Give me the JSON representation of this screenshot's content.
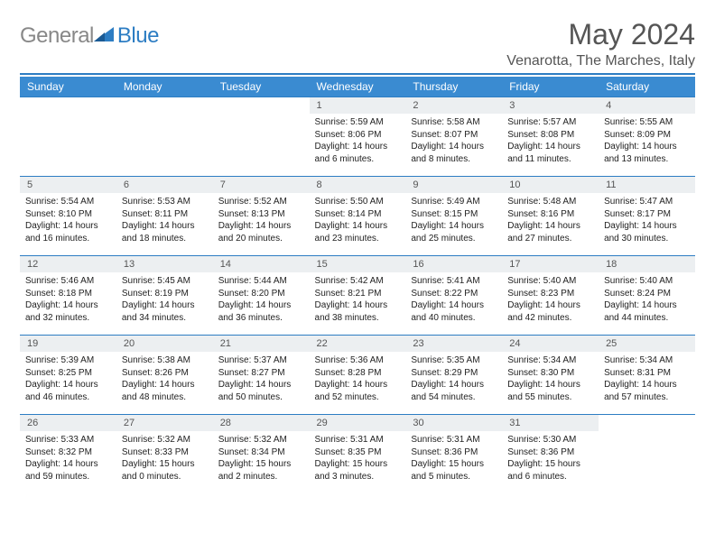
{
  "logo": {
    "textA": "General",
    "textB": "Blue"
  },
  "title": "May 2024",
  "subtitle": "Venarotta, The Marches, Italy",
  "colors": {
    "headerBar": "#3a8bd1",
    "rule": "#2d7dc3",
    "dayNumBg": "#eceff1"
  },
  "weekdays": [
    "Sunday",
    "Monday",
    "Tuesday",
    "Wednesday",
    "Thursday",
    "Friday",
    "Saturday"
  ],
  "weeks": [
    [
      null,
      null,
      null,
      {
        "n": "1",
        "sr": "5:59 AM",
        "ss": "8:06 PM",
        "dl": "14 hours and 6 minutes."
      },
      {
        "n": "2",
        "sr": "5:58 AM",
        "ss": "8:07 PM",
        "dl": "14 hours and 8 minutes."
      },
      {
        "n": "3",
        "sr": "5:57 AM",
        "ss": "8:08 PM",
        "dl": "14 hours and 11 minutes."
      },
      {
        "n": "4",
        "sr": "5:55 AM",
        "ss": "8:09 PM",
        "dl": "14 hours and 13 minutes."
      }
    ],
    [
      {
        "n": "5",
        "sr": "5:54 AM",
        "ss": "8:10 PM",
        "dl": "14 hours and 16 minutes."
      },
      {
        "n": "6",
        "sr": "5:53 AM",
        "ss": "8:11 PM",
        "dl": "14 hours and 18 minutes."
      },
      {
        "n": "7",
        "sr": "5:52 AM",
        "ss": "8:13 PM",
        "dl": "14 hours and 20 minutes."
      },
      {
        "n": "8",
        "sr": "5:50 AM",
        "ss": "8:14 PM",
        "dl": "14 hours and 23 minutes."
      },
      {
        "n": "9",
        "sr": "5:49 AM",
        "ss": "8:15 PM",
        "dl": "14 hours and 25 minutes."
      },
      {
        "n": "10",
        "sr": "5:48 AM",
        "ss": "8:16 PM",
        "dl": "14 hours and 27 minutes."
      },
      {
        "n": "11",
        "sr": "5:47 AM",
        "ss": "8:17 PM",
        "dl": "14 hours and 30 minutes."
      }
    ],
    [
      {
        "n": "12",
        "sr": "5:46 AM",
        "ss": "8:18 PM",
        "dl": "14 hours and 32 minutes."
      },
      {
        "n": "13",
        "sr": "5:45 AM",
        "ss": "8:19 PM",
        "dl": "14 hours and 34 minutes."
      },
      {
        "n": "14",
        "sr": "5:44 AM",
        "ss": "8:20 PM",
        "dl": "14 hours and 36 minutes."
      },
      {
        "n": "15",
        "sr": "5:42 AM",
        "ss": "8:21 PM",
        "dl": "14 hours and 38 minutes."
      },
      {
        "n": "16",
        "sr": "5:41 AM",
        "ss": "8:22 PM",
        "dl": "14 hours and 40 minutes."
      },
      {
        "n": "17",
        "sr": "5:40 AM",
        "ss": "8:23 PM",
        "dl": "14 hours and 42 minutes."
      },
      {
        "n": "18",
        "sr": "5:40 AM",
        "ss": "8:24 PM",
        "dl": "14 hours and 44 minutes."
      }
    ],
    [
      {
        "n": "19",
        "sr": "5:39 AM",
        "ss": "8:25 PM",
        "dl": "14 hours and 46 minutes."
      },
      {
        "n": "20",
        "sr": "5:38 AM",
        "ss": "8:26 PM",
        "dl": "14 hours and 48 minutes."
      },
      {
        "n": "21",
        "sr": "5:37 AM",
        "ss": "8:27 PM",
        "dl": "14 hours and 50 minutes."
      },
      {
        "n": "22",
        "sr": "5:36 AM",
        "ss": "8:28 PM",
        "dl": "14 hours and 52 minutes."
      },
      {
        "n": "23",
        "sr": "5:35 AM",
        "ss": "8:29 PM",
        "dl": "14 hours and 54 minutes."
      },
      {
        "n": "24",
        "sr": "5:34 AM",
        "ss": "8:30 PM",
        "dl": "14 hours and 55 minutes."
      },
      {
        "n": "25",
        "sr": "5:34 AM",
        "ss": "8:31 PM",
        "dl": "14 hours and 57 minutes."
      }
    ],
    [
      {
        "n": "26",
        "sr": "5:33 AM",
        "ss": "8:32 PM",
        "dl": "14 hours and 59 minutes."
      },
      {
        "n": "27",
        "sr": "5:32 AM",
        "ss": "8:33 PM",
        "dl": "15 hours and 0 minutes."
      },
      {
        "n": "28",
        "sr": "5:32 AM",
        "ss": "8:34 PM",
        "dl": "15 hours and 2 minutes."
      },
      {
        "n": "29",
        "sr": "5:31 AM",
        "ss": "8:35 PM",
        "dl": "15 hours and 3 minutes."
      },
      {
        "n": "30",
        "sr": "5:31 AM",
        "ss": "8:36 PM",
        "dl": "15 hours and 5 minutes."
      },
      {
        "n": "31",
        "sr": "5:30 AM",
        "ss": "8:36 PM",
        "dl": "15 hours and 6 minutes."
      },
      null
    ]
  ],
  "labels": {
    "sunrise": "Sunrise: ",
    "sunset": "Sunset: ",
    "daylight": "Daylight: "
  }
}
